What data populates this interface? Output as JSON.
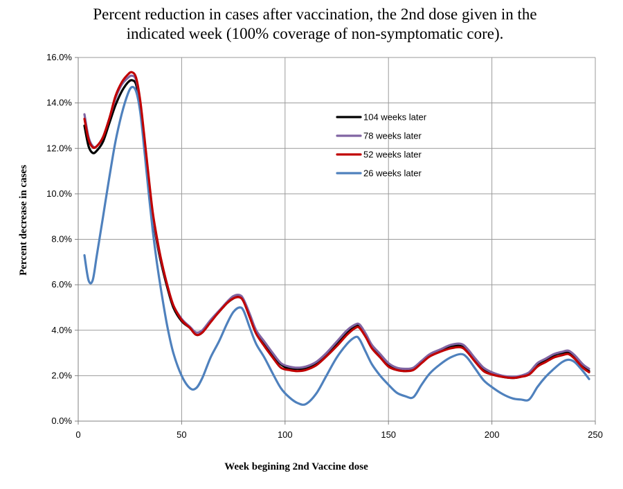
{
  "chart_data": {
    "type": "line",
    "title_lines": [
      "Percent reduction in cases after vaccination, the 2nd dose given in the",
      "indicated week (100% coverage of non-symptomatic core)."
    ],
    "xlabel": "Week begining 2nd Vaccine dose",
    "ylabel": "Percent  decrease in cases",
    "xlim": [
      0,
      250
    ],
    "ylim": [
      0,
      16
    ],
    "x_ticks": [
      0,
      50,
      100,
      150,
      200,
      250
    ],
    "x_tick_labels": [
      "0",
      "50",
      "100",
      "150",
      "200",
      "250"
    ],
    "y_ticks": [
      0,
      2,
      4,
      6,
      8,
      10,
      12,
      14,
      16
    ],
    "y_tick_labels": [
      "0.0%",
      "2.0%",
      "4.0%",
      "6.0%",
      "8.0%",
      "10.0%",
      "12.0%",
      "14.0%",
      "16.0%"
    ],
    "grid": true,
    "legend_position": "upper-middle",
    "series": [
      {
        "name": "104 weeks later",
        "color": "#000000",
        "x": [
          3,
          5,
          7,
          9,
          12,
          15,
          18,
          21,
          24,
          26,
          28,
          30,
          32,
          34,
          36,
          38,
          40,
          43,
          46,
          50,
          54,
          57,
          60,
          64,
          68,
          72,
          75,
          78,
          80,
          83,
          86,
          90,
          94,
          98,
          102,
          106,
          110,
          115,
          120,
          125,
          130,
          134,
          136,
          139,
          142,
          146,
          150,
          154,
          158,
          162,
          166,
          170,
          175,
          180,
          185,
          188,
          192,
          196,
          200,
          205,
          210,
          214,
          218,
          222,
          226,
          230,
          234,
          237,
          240,
          244,
          247
        ],
        "values": [
          13.0,
          12.1,
          11.8,
          11.9,
          12.3,
          13.1,
          13.9,
          14.5,
          14.9,
          15.0,
          14.8,
          13.8,
          12.2,
          10.5,
          9.0,
          7.9,
          7.0,
          5.9,
          5.0,
          4.4,
          4.1,
          3.8,
          3.9,
          4.4,
          4.8,
          5.2,
          5.4,
          5.5,
          5.3,
          4.6,
          3.9,
          3.4,
          2.9,
          2.5,
          2.3,
          2.3,
          2.3,
          2.5,
          2.9,
          3.4,
          3.9,
          4.2,
          4.2,
          3.8,
          3.3,
          2.9,
          2.5,
          2.3,
          2.2,
          2.3,
          2.6,
          2.9,
          3.1,
          3.3,
          3.3,
          3.1,
          2.7,
          2.3,
          2.1,
          1.95,
          1.9,
          1.95,
          2.1,
          2.5,
          2.7,
          2.9,
          3.0,
          3.0,
          2.8,
          2.4,
          2.2
        ]
      },
      {
        "name": "78 weeks later",
        "color": "#8064a2",
        "x": [
          3,
          5,
          7,
          9,
          12,
          15,
          18,
          21,
          24,
          26,
          28,
          30,
          32,
          34,
          36,
          38,
          40,
          43,
          46,
          50,
          54,
          57,
          60,
          64,
          68,
          72,
          75,
          78,
          80,
          83,
          86,
          90,
          94,
          98,
          102,
          106,
          110,
          115,
          120,
          125,
          130,
          134,
          136,
          139,
          142,
          146,
          150,
          154,
          158,
          162,
          166,
          170,
          175,
          180,
          185,
          188,
          192,
          196,
          200,
          205,
          210,
          214,
          218,
          222,
          226,
          230,
          234,
          237,
          240,
          244,
          247
        ],
        "values": [
          13.5,
          12.5,
          12.1,
          12.1,
          12.5,
          13.3,
          14.2,
          14.8,
          15.1,
          15.2,
          15.0,
          14.0,
          12.4,
          10.7,
          9.1,
          8.0,
          7.1,
          6.0,
          5.1,
          4.5,
          4.15,
          3.9,
          4.0,
          4.45,
          4.85,
          5.25,
          5.5,
          5.55,
          5.35,
          4.7,
          4.0,
          3.5,
          3.0,
          2.55,
          2.4,
          2.35,
          2.4,
          2.6,
          3.0,
          3.5,
          4.0,
          4.25,
          4.25,
          3.85,
          3.35,
          2.95,
          2.55,
          2.35,
          2.3,
          2.35,
          2.65,
          2.95,
          3.15,
          3.35,
          3.4,
          3.2,
          2.75,
          2.35,
          2.15,
          2.0,
          1.95,
          2.0,
          2.15,
          2.55,
          2.75,
          2.95,
          3.05,
          3.1,
          2.9,
          2.5,
          2.3
        ]
      },
      {
        "name": "52 weeks later",
        "color": "#c00000",
        "x": [
          3,
          5,
          7,
          9,
          12,
          15,
          18,
          21,
          24,
          26,
          28,
          30,
          32,
          34,
          36,
          38,
          40,
          43,
          46,
          50,
          54,
          57,
          60,
          64,
          68,
          72,
          75,
          78,
          80,
          83,
          86,
          90,
          94,
          98,
          102,
          106,
          110,
          115,
          120,
          125,
          130,
          134,
          136,
          139,
          142,
          146,
          150,
          154,
          158,
          162,
          166,
          170,
          175,
          180,
          185,
          188,
          192,
          196,
          200,
          205,
          210,
          214,
          218,
          222,
          226,
          230,
          234,
          237,
          240,
          244,
          247
        ],
        "values": [
          13.3,
          12.4,
          12.05,
          12.1,
          12.5,
          13.3,
          14.3,
          14.9,
          15.25,
          15.35,
          15.1,
          14.1,
          12.5,
          10.8,
          9.2,
          8.1,
          7.15,
          6.0,
          5.1,
          4.45,
          4.1,
          3.8,
          3.9,
          4.35,
          4.8,
          5.2,
          5.4,
          5.45,
          5.25,
          4.55,
          3.85,
          3.3,
          2.8,
          2.35,
          2.25,
          2.2,
          2.25,
          2.45,
          2.85,
          3.3,
          3.8,
          4.1,
          4.1,
          3.7,
          3.2,
          2.8,
          2.4,
          2.25,
          2.2,
          2.25,
          2.55,
          2.85,
          3.05,
          3.2,
          3.25,
          3.05,
          2.6,
          2.2,
          2.05,
          1.95,
          1.9,
          1.95,
          2.05,
          2.4,
          2.6,
          2.8,
          2.9,
          2.95,
          2.75,
          2.35,
          2.15
        ]
      },
      {
        "name": "26 weeks later",
        "color": "#4f81bd",
        "x": [
          3,
          5,
          7,
          9,
          12,
          15,
          18,
          21,
          24,
          26,
          28,
          30,
          32,
          34,
          36,
          38,
          40,
          43,
          46,
          50,
          54,
          57,
          60,
          64,
          68,
          72,
          75,
          78,
          80,
          83,
          86,
          90,
          94,
          98,
          102,
          106,
          110,
          115,
          120,
          125,
          130,
          134,
          136,
          139,
          142,
          146,
          150,
          154,
          158,
          162,
          166,
          170,
          175,
          180,
          185,
          188,
          192,
          196,
          200,
          205,
          210,
          214,
          218,
          222,
          226,
          230,
          234,
          237,
          240,
          244,
          247
        ],
        "values": [
          7.3,
          6.2,
          6.2,
          7.3,
          9.0,
          10.7,
          12.3,
          13.5,
          14.4,
          14.7,
          14.5,
          13.6,
          11.9,
          10.1,
          8.4,
          7.0,
          5.8,
          4.2,
          3.0,
          2.0,
          1.45,
          1.45,
          1.9,
          2.8,
          3.5,
          4.3,
          4.8,
          5.0,
          4.85,
          4.1,
          3.4,
          2.8,
          2.1,
          1.45,
          1.05,
          0.8,
          0.75,
          1.2,
          2.0,
          2.8,
          3.4,
          3.7,
          3.6,
          3.05,
          2.5,
          2.0,
          1.6,
          1.25,
          1.1,
          1.05,
          1.6,
          2.1,
          2.5,
          2.8,
          2.95,
          2.8,
          2.3,
          1.8,
          1.5,
          1.2,
          1.0,
          0.95,
          0.95,
          1.5,
          1.95,
          2.3,
          2.6,
          2.7,
          2.6,
          2.2,
          1.85
        ]
      }
    ]
  }
}
